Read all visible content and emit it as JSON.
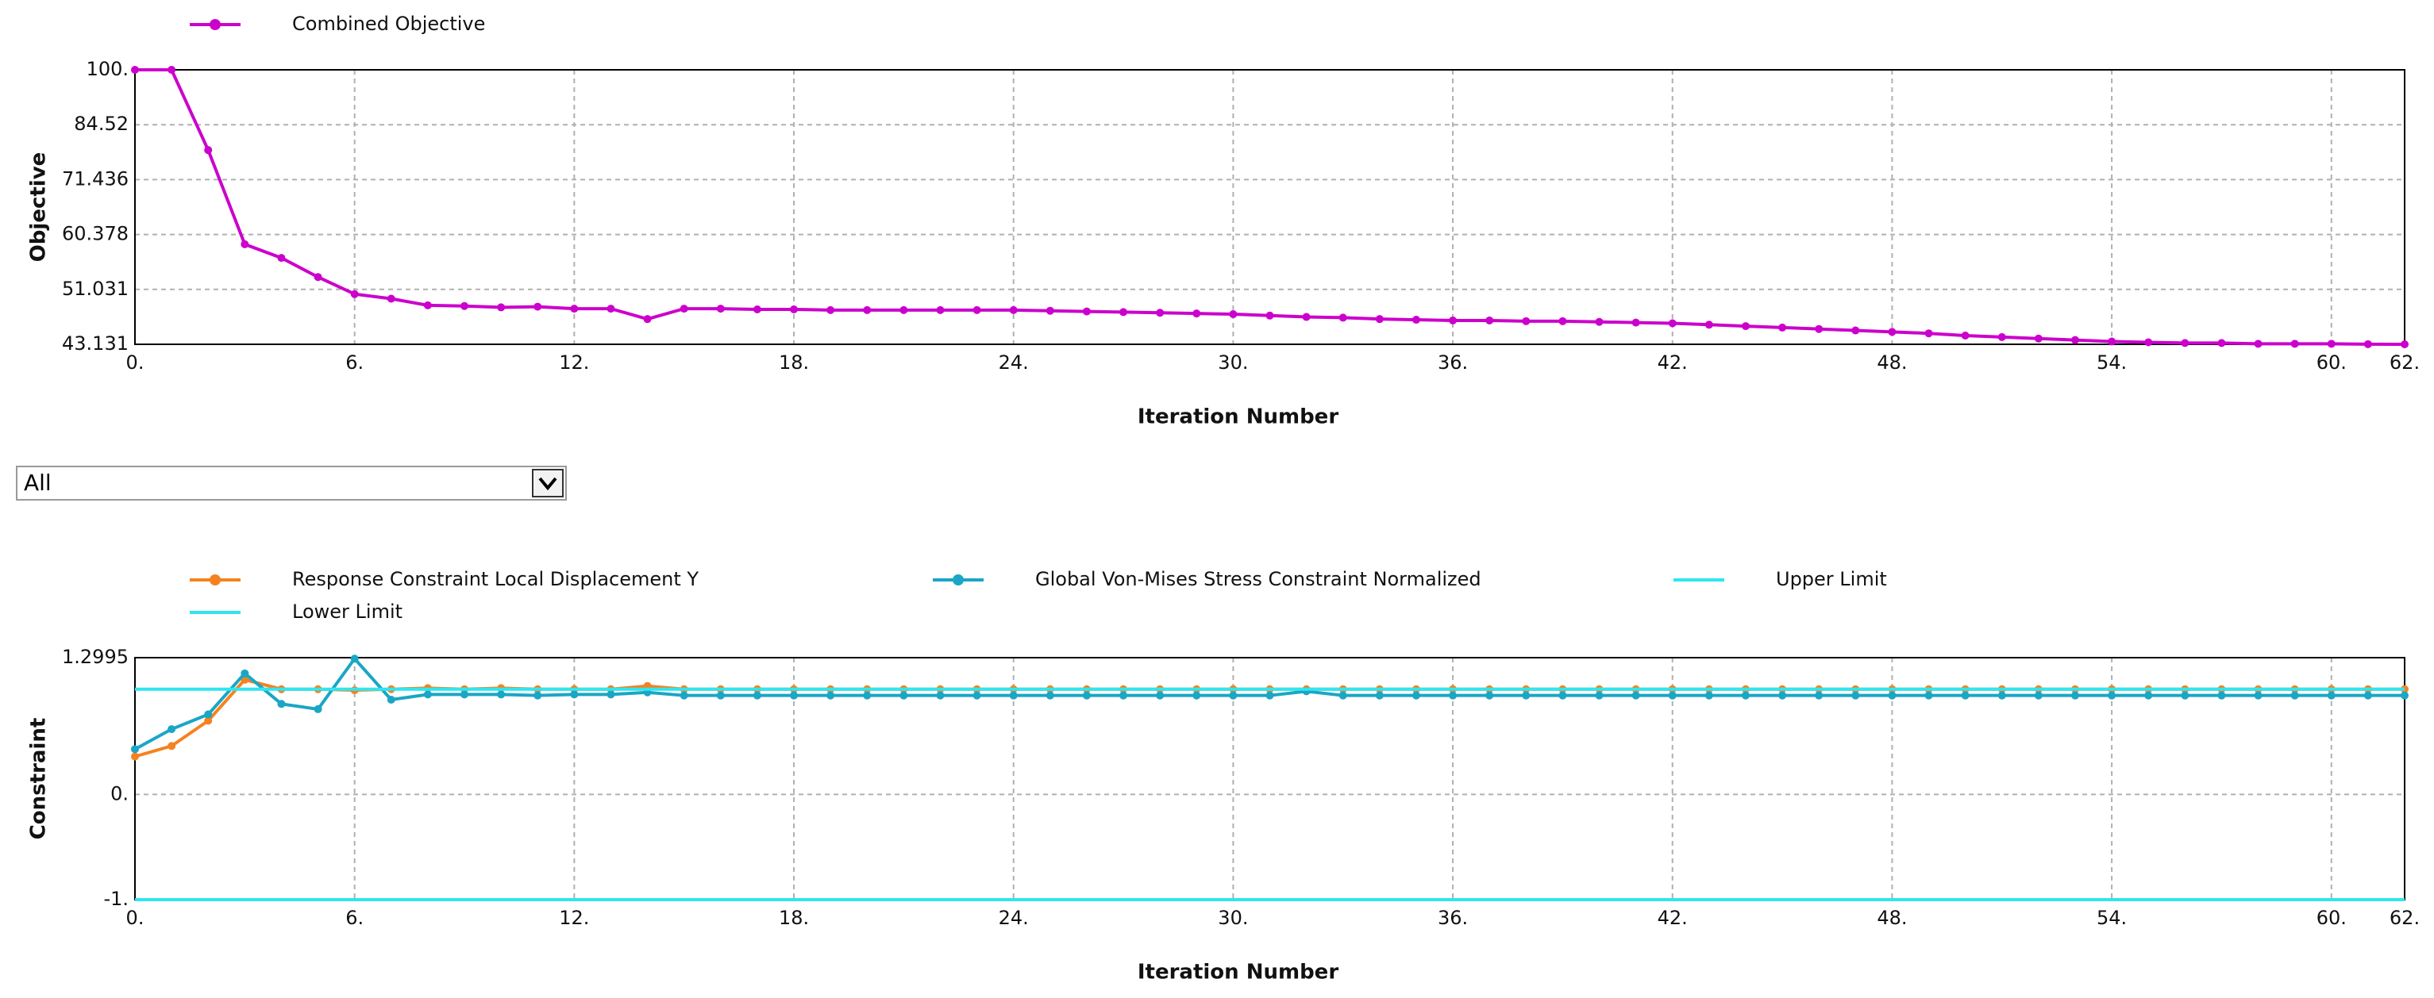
{
  "dropdown": {
    "value": "All"
  },
  "chart_data": [
    {
      "type": "line",
      "xlabel": "Iteration Number",
      "ylabel": "Objective",
      "log_y": true,
      "grid": true,
      "x": [
        0,
        1,
        2,
        3,
        4,
        5,
        6,
        7,
        8,
        9,
        10,
        11,
        12,
        13,
        14,
        15,
        16,
        17,
        18,
        19,
        20,
        21,
        22,
        23,
        24,
        25,
        26,
        27,
        28,
        29,
        30,
        31,
        32,
        33,
        34,
        35,
        36,
        37,
        38,
        39,
        40,
        41,
        42,
        43,
        44,
        45,
        46,
        47,
        48,
        49,
        50,
        51,
        52,
        53,
        54,
        55,
        56,
        57,
        58,
        59,
        60,
        61,
        62
      ],
      "xlim": [
        0,
        62
      ],
      "xticks": [
        {
          "value": 0,
          "label": "0."
        },
        {
          "value": 6,
          "label": "6."
        },
        {
          "value": 12,
          "label": "12."
        },
        {
          "value": 18,
          "label": "18."
        },
        {
          "value": 24,
          "label": "24."
        },
        {
          "value": 30,
          "label": "30."
        },
        {
          "value": 36,
          "label": "36."
        },
        {
          "value": 42,
          "label": "42."
        },
        {
          "value": 48,
          "label": "48."
        },
        {
          "value": 54,
          "label": "54."
        },
        {
          "value": 60,
          "label": "60."
        },
        {
          "value": 62,
          "label": "62."
        }
      ],
      "ylim": [
        43.131,
        100
      ],
      "yticks": [
        43.131,
        51.031,
        60.378,
        71.436,
        84.52,
        {
          "value": 100,
          "label": "100."
        }
      ],
      "series": [
        {
          "name": "Combined Objective",
          "color": "#cc00cc",
          "markers": true,
          "values": [
            100,
            100,
            78.2,
            58.6,
            56.2,
            53.0,
            50.3,
            49.6,
            48.6,
            48.5,
            48.3,
            48.4,
            48.1,
            48.1,
            46.6,
            48.1,
            48.1,
            48.0,
            48.0,
            47.9,
            47.9,
            47.9,
            47.9,
            47.9,
            47.9,
            47.8,
            47.7,
            47.6,
            47.5,
            47.4,
            47.3,
            47.1,
            46.9,
            46.8,
            46.6,
            46.5,
            46.4,
            46.4,
            46.3,
            46.3,
            46.2,
            46.1,
            46.0,
            45.8,
            45.6,
            45.4,
            45.2,
            45.0,
            44.8,
            44.6,
            44.3,
            44.1,
            43.9,
            43.7,
            43.5,
            43.4,
            43.3,
            43.3,
            43.2,
            43.2,
            43.2,
            43.15,
            43.131
          ]
        }
      ]
    },
    {
      "type": "line",
      "xlabel": "Iteration Number",
      "ylabel": "Constraint",
      "log_y": false,
      "grid": true,
      "x": [
        0,
        1,
        2,
        3,
        4,
        5,
        6,
        7,
        8,
        9,
        10,
        11,
        12,
        13,
        14,
        15,
        16,
        17,
        18,
        19,
        20,
        21,
        22,
        23,
        24,
        25,
        26,
        27,
        28,
        29,
        30,
        31,
        32,
        33,
        34,
        35,
        36,
        37,
        38,
        39,
        40,
        41,
        42,
        43,
        44,
        45,
        46,
        47,
        48,
        49,
        50,
        51,
        52,
        53,
        54,
        55,
        56,
        57,
        58,
        59,
        60,
        61,
        62
      ],
      "xlim": [
        0,
        62
      ],
      "xticks": [
        {
          "value": 0,
          "label": "0."
        },
        {
          "value": 6,
          "label": "6."
        },
        {
          "value": 12,
          "label": "12."
        },
        {
          "value": 18,
          "label": "18."
        },
        {
          "value": 24,
          "label": "24."
        },
        {
          "value": 30,
          "label": "30."
        },
        {
          "value": 36,
          "label": "36."
        },
        {
          "value": 42,
          "label": "42."
        },
        {
          "value": 48,
          "label": "48."
        },
        {
          "value": 54,
          "label": "54."
        },
        {
          "value": 60,
          "label": "60."
        },
        {
          "value": 62,
          "label": "62."
        }
      ],
      "ylim": [
        -1,
        1.2995
      ],
      "yticks": [
        {
          "value": -1,
          "label": "-1."
        },
        {
          "value": 0,
          "label": "0."
        },
        1.2995
      ],
      "series": [
        {
          "name": "Response Constraint Local Displacement  Y",
          "color": "#f5821f",
          "markers": true,
          "values": [
            0.36,
            0.46,
            0.7,
            1.09,
            1.0,
            1.0,
            0.99,
            1.0,
            1.01,
            1.0,
            1.01,
            1.0,
            1.0,
            1.0,
            1.03,
            1.0,
            1.0,
            1.0,
            1.0,
            1.0,
            1.0,
            1.0,
            1.0,
            1.0,
            1.0,
            1.0,
            1.0,
            1.0,
            1.0,
            1.0,
            1.0,
            1.0,
            1.0,
            1.0,
            1.0,
            1.0,
            1.0,
            1.0,
            1.0,
            1.0,
            1.0,
            1.0,
            1.0,
            1.0,
            1.0,
            1.0,
            1.0,
            1.0,
            1.0,
            1.0,
            1.0,
            1.0,
            1.0,
            1.0,
            1.0,
            1.0,
            1.0,
            1.0,
            1.0,
            1.0,
            1.0,
            1.0,
            1.0
          ]
        },
        {
          "name": "Global Von-Mises Stress Constraint Normalized",
          "color": "#1aa6c6",
          "markers": true,
          "values": [
            0.43,
            0.62,
            0.76,
            1.15,
            0.86,
            0.81,
            1.29,
            0.9,
            0.95,
            0.95,
            0.95,
            0.94,
            0.95,
            0.95,
            0.97,
            0.94,
            0.94,
            0.94,
            0.94,
            0.94,
            0.94,
            0.94,
            0.94,
            0.94,
            0.94,
            0.94,
            0.94,
            0.94,
            0.94,
            0.94,
            0.94,
            0.94,
            0.98,
            0.94,
            0.94,
            0.94,
            0.94,
            0.94,
            0.94,
            0.94,
            0.94,
            0.94,
            0.94,
            0.94,
            0.94,
            0.94,
            0.94,
            0.94,
            0.94,
            0.94,
            0.94,
            0.94,
            0.94,
            0.94,
            0.94,
            0.94,
            0.94,
            0.94,
            0.94,
            0.94,
            0.94,
            0.94,
            0.94
          ]
        },
        {
          "name": "Upper Limit",
          "color": "#2ee6f0",
          "markers": false,
          "x": [
            0,
            62
          ],
          "values": [
            1,
            1
          ]
        },
        {
          "name": "Lower Limit",
          "color": "#2ee6f0",
          "markers": false,
          "x": [
            0,
            62
          ],
          "values": [
            -1,
            -1
          ]
        }
      ]
    }
  ]
}
